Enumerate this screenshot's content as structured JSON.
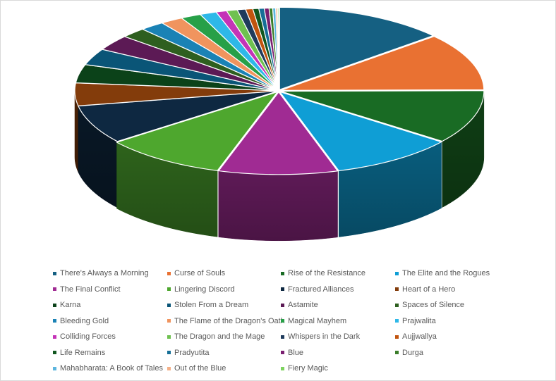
{
  "chart_data": {
    "type": "pie",
    "style": "3d-exploded",
    "legend_position": "bottom",
    "title": "",
    "slices": [
      {
        "label": "There's Always a Morning",
        "value": 1440,
        "color": "#156082"
      },
      {
        "label": "Curse of Souls",
        "value": 1190,
        "color": "#E97132"
      },
      {
        "label": "Rise of the Resistance",
        "value": 1110,
        "color": "#196B24"
      },
      {
        "label": "The Elite and the Rogues",
        "value": 1050,
        "color": "#0F9ED5"
      },
      {
        "label": "The Final Conflict",
        "value": 1000,
        "color": "#A02B93"
      },
      {
        "label": "Lingering Discord",
        "value": 1030,
        "color": "#4EA72E"
      },
      {
        "label": "Fractured Alliances",
        "value": 800,
        "color": "#0E2841"
      },
      {
        "label": "Heart of a Hero",
        "value": 470,
        "color": "#833C0B"
      },
      {
        "label": "Karna",
        "value": 380,
        "color": "#0B4219"
      },
      {
        "label": "Stolen From a Dream",
        "value": 340,
        "color": "#0A5577"
      },
      {
        "label": "Astamite",
        "value": 320,
        "color": "#5C1A55"
      },
      {
        "label": "Spaces of Silence",
        "value": 210,
        "color": "#2E5F1F"
      },
      {
        "label": "Bleeding Gold",
        "value": 205,
        "color": "#1A82B5"
      },
      {
        "label": "The Flame of the Dragon's Oath",
        "value": 190,
        "color": "#F0945E"
      },
      {
        "label": "Magical Mayhem",
        "value": 170,
        "color": "#27A048"
      },
      {
        "label": "Prajwalita",
        "value": 140,
        "color": "#2EB8E8"
      },
      {
        "label": "Colliding Forces",
        "value": 90,
        "color": "#C433B7"
      },
      {
        "label": "The Dragon and the Mage",
        "value": 90,
        "color": "#6FC150"
      },
      {
        "label": "Whispers in the Dark",
        "value": 70,
        "color": "#1F3B5C"
      },
      {
        "label": "Aujjwallya",
        "value": 60,
        "color": "#C1540F"
      },
      {
        "label": "Life Remains",
        "value": 50,
        "color": "#11571F"
      },
      {
        "label": "Pradyutita",
        "value": 45,
        "color": "#166F97"
      },
      {
        "label": "Blue",
        "value": 40,
        "color": "#7A1F70"
      },
      {
        "label": "Durga",
        "value": 30,
        "color": "#3B7E2A"
      },
      {
        "label": "Mahabharata: A Book of Tales",
        "value": 25,
        "color": "#5CB5DE"
      },
      {
        "label": "Out of the Blue",
        "value": 15,
        "color": "#F4B088"
      },
      {
        "label": "Fiery Magic",
        "value": 10,
        "color": "#7DD35F"
      }
    ]
  }
}
